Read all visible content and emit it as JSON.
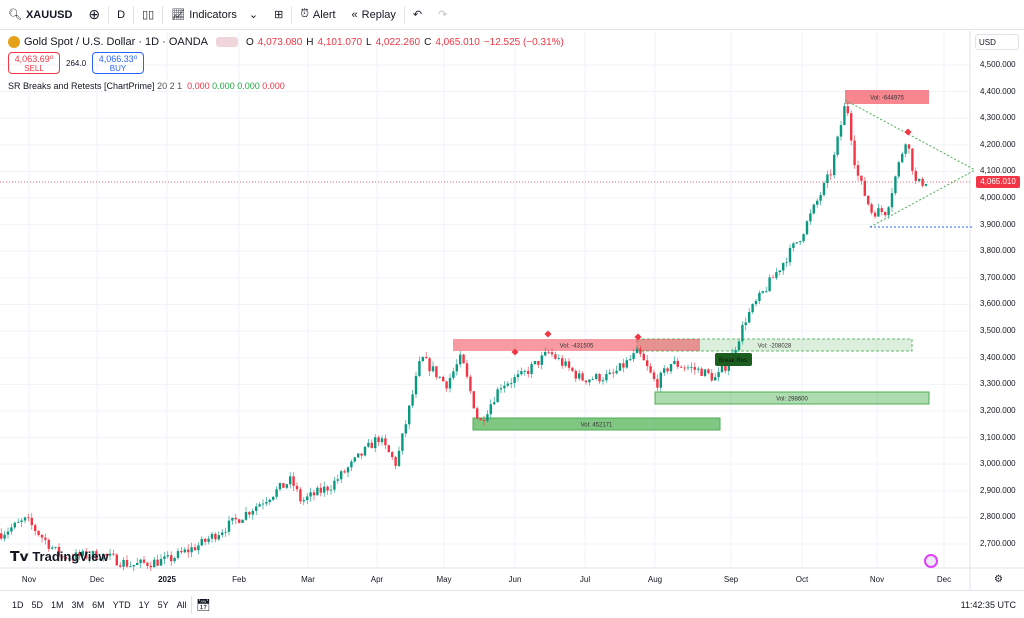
{
  "toolbar": {
    "symbol": "XAUUSD",
    "interval": "D",
    "indicators": "Indicators",
    "alert": "Alert",
    "replay": "Replay"
  },
  "legend": {
    "title": "Gold Spot / U.S. Dollar · 1D · OANDA",
    "o_label": "O",
    "o": "4,073.080",
    "h_label": "H",
    "h": "4,101.070",
    "l_label": "L",
    "l": "4,022.260",
    "c_label": "C",
    "c": "4,065.010",
    "change": "−12.525 (−0.31%)"
  },
  "trade": {
    "sell_price": "4,063.69⁰",
    "sell": "SELL",
    "spread": "264.0",
    "buy_price": "4,066.33⁰",
    "buy": "BUY"
  },
  "indicator": {
    "name": "SR Breaks and Retests [ChartPrime]",
    "params": "20 2 1",
    "v1": "0.000",
    "v2": "0.000",
    "v3": "0.000",
    "v4": "0.000"
  },
  "currency": "USD",
  "price_axis": [
    "4,500.000",
    "4,400.000",
    "4,300.000",
    "4,200.000",
    "4,100.000",
    "4,000.000",
    "3,900.000",
    "3,800.000",
    "3,700.000",
    "3,600.000",
    "3,500.000",
    "3,400.000",
    "3,300.000",
    "3,200.000",
    "3,100.000",
    "3,000.000",
    "2,900.000",
    "2,800.000",
    "2,700.000"
  ],
  "current_price": "4,065.010",
  "time_axis": [
    "Nov",
    "Dec",
    "2025",
    "Feb",
    "Mar",
    "Apr",
    "May",
    "Jun",
    "Jul",
    "Aug",
    "Sep",
    "Oct",
    "Nov",
    "Dec"
  ],
  "zones": {
    "res1": "Vol: -431505",
    "res1_retest": "Vol: -208028",
    "sup1": "Vol: 452171",
    "sup2": "Vol: 298600",
    "res2": "Vol: -644975",
    "break_label": "Break Res"
  },
  "price_path": [
    2740,
    2790,
    2650,
    2660,
    2620,
    2640,
    2700,
    2800,
    2940,
    2860,
    2920,
    3100,
    3000,
    3400,
    3300,
    3400,
    3150,
    3300,
    3330,
    3420,
    3320,
    3330,
    3420,
    3300,
    3380,
    3350,
    3320,
    3400,
    3550,
    3860,
    4100,
    4370,
    4100,
    3950,
    3950,
    4230,
    4050,
    4065
  ],
  "colors": {
    "up": "#089981",
    "down": "#f23645",
    "sell": "#f23645",
    "buy": "#2962ff"
  },
  "logo": "TradingView",
  "ranges": [
    "1D",
    "5D",
    "1M",
    "3M",
    "6M",
    "YTD",
    "1Y",
    "5Y",
    "All"
  ],
  "clock": "11:42:35 UTC"
}
